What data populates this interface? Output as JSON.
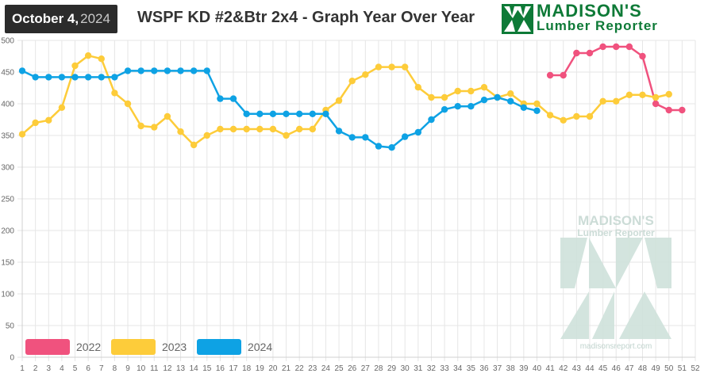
{
  "header": {
    "date_month_day": "October 4,",
    "date_year": "2024",
    "title": "WSPF KD #2&Btr 2x4 - Graph Year Over Year"
  },
  "logo": {
    "brand": "MADISON'S",
    "sub": "Lumber Reporter",
    "color": "#0e7a37"
  },
  "watermark": {
    "brand": "MADISON'S",
    "sub": "Lumber Reporter",
    "url": "madisonsreport.com"
  },
  "chart_data": {
    "type": "line",
    "categories": [
      1,
      2,
      3,
      4,
      5,
      6,
      7,
      8,
      9,
      10,
      11,
      12,
      13,
      14,
      15,
      16,
      17,
      18,
      19,
      20,
      21,
      22,
      23,
      24,
      25,
      26,
      27,
      28,
      29,
      30,
      31,
      32,
      33,
      34,
      35,
      36,
      37,
      38,
      39,
      40,
      41,
      42,
      43,
      44,
      45,
      46,
      47,
      48,
      49,
      50,
      51,
      52
    ],
    "ylim": [
      0,
      500
    ],
    "yticks": [
      0,
      50,
      100,
      150,
      200,
      250,
      300,
      350,
      400,
      450,
      500
    ],
    "grid": true,
    "legend_position": "bottom-left",
    "series": [
      {
        "name": "2022",
        "color": "#f0527e",
        "values": [
          null,
          null,
          null,
          null,
          null,
          null,
          null,
          null,
          null,
          null,
          null,
          null,
          null,
          null,
          null,
          null,
          null,
          null,
          null,
          null,
          null,
          null,
          null,
          null,
          null,
          null,
          null,
          null,
          null,
          null,
          null,
          null,
          null,
          null,
          null,
          null,
          null,
          null,
          null,
          null,
          445,
          445,
          480,
          480,
          490,
          490,
          490,
          475,
          400,
          390,
          390,
          null
        ]
      },
      {
        "name": "2023",
        "color": "#fdcc3a",
        "values": [
          352,
          370,
          374,
          394,
          460,
          476,
          471,
          417,
          400,
          365,
          363,
          380,
          356,
          335,
          350,
          360,
          360,
          360,
          360,
          360,
          350,
          360,
          360,
          390,
          405,
          436,
          446,
          458,
          458,
          458,
          426,
          410,
          410,
          420,
          420,
          426,
          410,
          416,
          400,
          400,
          382,
          374,
          380,
          380,
          404,
          404,
          414,
          414,
          410,
          415,
          null,
          null
        ]
      },
      {
        "name": "2024",
        "color": "#0ea2e4",
        "values": [
          452,
          442,
          442,
          442,
          442,
          442,
          442,
          442,
          452,
          452,
          452,
          452,
          452,
          452,
          452,
          408,
          408,
          384,
          384,
          384,
          384,
          384,
          384,
          384,
          357,
          347,
          347,
          333,
          331,
          348,
          355,
          375,
          391,
          396,
          396,
          406,
          410,
          404,
          394,
          389,
          null,
          null,
          null,
          null,
          null,
          null,
          null,
          null,
          null,
          null,
          null,
          null
        ]
      }
    ]
  }
}
